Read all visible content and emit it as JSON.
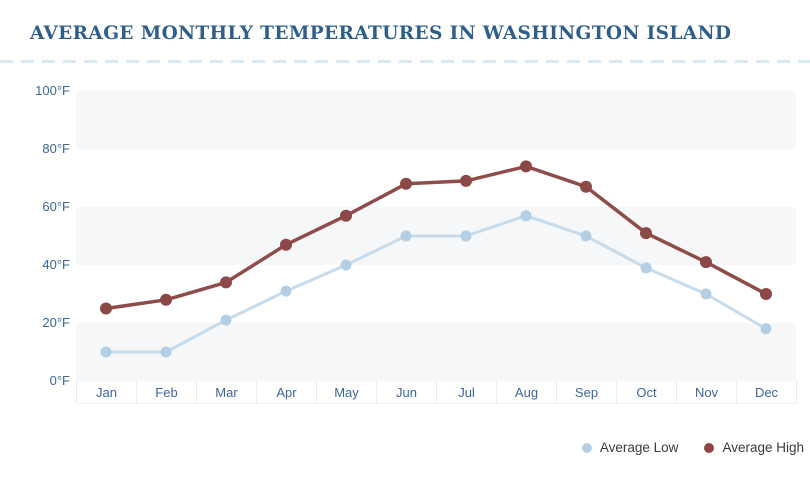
{
  "title": "AVERAGE MONTHLY TEMPERATURES IN WASHINGTON ISLAND",
  "colors": {
    "title_text": "#2e5f8a",
    "axis_text": "#3c6795",
    "divider_dash": "#d7e9f5",
    "band_gray": "#f6f7f8",
    "legend_text": "#3a3a3a",
    "average_low": "#b4cfe3",
    "average_high": "#8c4846"
  },
  "chart_data": {
    "type": "line",
    "title": "AVERAGE MONTHLY TEMPERATURES IN WASHINGTON ISLAND",
    "categories": [
      "Jan",
      "Feb",
      "Mar",
      "Apr",
      "May",
      "Jun",
      "Jul",
      "Aug",
      "Sep",
      "Oct",
      "Nov",
      "Dec"
    ],
    "series": [
      {
        "name": "Average Low",
        "color": "#b4cfe3",
        "line_color": "#c6dbec",
        "values": [
          10,
          10,
          21,
          31,
          40,
          50,
          50,
          57,
          50,
          39,
          30,
          18
        ]
      },
      {
        "name": "Average High",
        "color": "#8c4846",
        "line_color": "#8e4d4a",
        "values": [
          25,
          28,
          34,
          47,
          57,
          68,
          69,
          74,
          67,
          51,
          41,
          30
        ]
      }
    ],
    "xlabel": "",
    "ylabel": "",
    "y_tick_labels": [
      "100°F",
      "80°F",
      "60°F",
      "40°F",
      "20°F",
      "0°F"
    ],
    "ylim": [
      0,
      100
    ],
    "grid": "alternating horizontal gray/white bands every 20°F",
    "legend_position": "bottom-right"
  }
}
